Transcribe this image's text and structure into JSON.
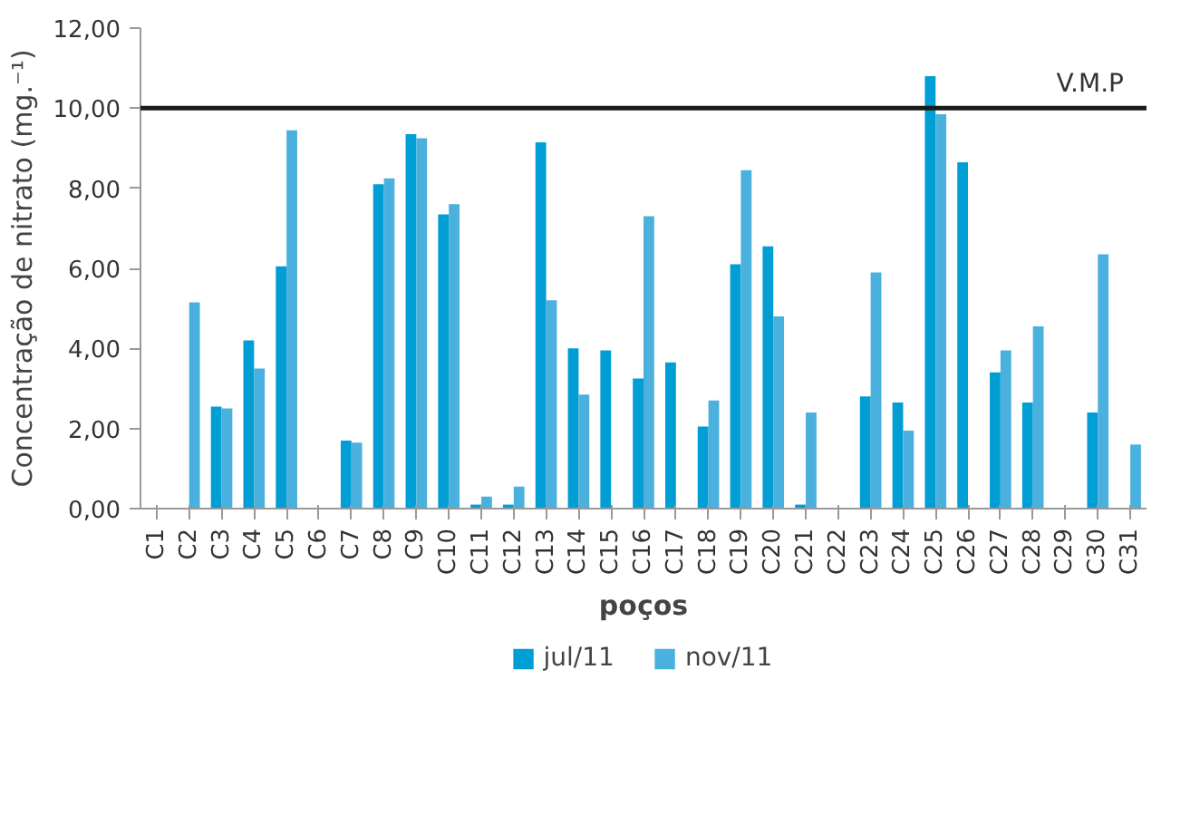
{
  "chart_data": {
    "type": "bar",
    "xlabel": "poços",
    "ylabel": "Concentração de nitrato (mg.⁻¹)",
    "categories": [
      "C1",
      "C2",
      "C3",
      "C4",
      "C5",
      "C6",
      "C7",
      "C8",
      "C9",
      "C10",
      "C11",
      "C12",
      "C13",
      "C14",
      "C15",
      "C16",
      "C17",
      "C18",
      "C19",
      "C20",
      "C21",
      "C22",
      "C23",
      "C24",
      "C25",
      "C26",
      "C27",
      "C28",
      "C29",
      "C30",
      "C31"
    ],
    "series": [
      {
        "name": "jul/11",
        "color": "#009ed4",
        "values": [
          null,
          null,
          2.55,
          4.2,
          6.05,
          null,
          1.7,
          8.1,
          9.35,
          7.35,
          0.1,
          0.1,
          9.15,
          4.0,
          3.95,
          3.25,
          3.65,
          2.05,
          6.1,
          6.55,
          0.1,
          null,
          2.8,
          2.65,
          10.8,
          8.65,
          3.4,
          2.65,
          null,
          2.4,
          null
        ]
      },
      {
        "name": "nov/11",
        "color": "#4ab0de",
        "values": [
          null,
          5.15,
          2.5,
          3.5,
          9.45,
          null,
          1.65,
          8.25,
          9.25,
          7.6,
          0.3,
          0.55,
          5.2,
          2.85,
          null,
          7.3,
          null,
          2.7,
          8.45,
          4.8,
          2.4,
          null,
          5.9,
          1.95,
          9.85,
          null,
          3.95,
          4.55,
          null,
          6.35,
          1.6
        ]
      }
    ],
    "ylim": [
      0,
      12
    ],
    "yticks": [
      {
        "value": 0,
        "label": "0,00"
      },
      {
        "value": 2,
        "label": "2,00"
      },
      {
        "value": 4,
        "label": "4,00"
      },
      {
        "value": 6,
        "label": "6,00"
      },
      {
        "value": 8,
        "label": "8,00"
      },
      {
        "value": 10,
        "label": "10,00"
      },
      {
        "value": 12,
        "label": "12,00"
      }
    ],
    "ref_lines": [
      {
        "axis": "y",
        "value": 10,
        "label": "V.M.P",
        "color": "#1a1a1a"
      }
    ],
    "legend": "bottom",
    "grid": false
  }
}
